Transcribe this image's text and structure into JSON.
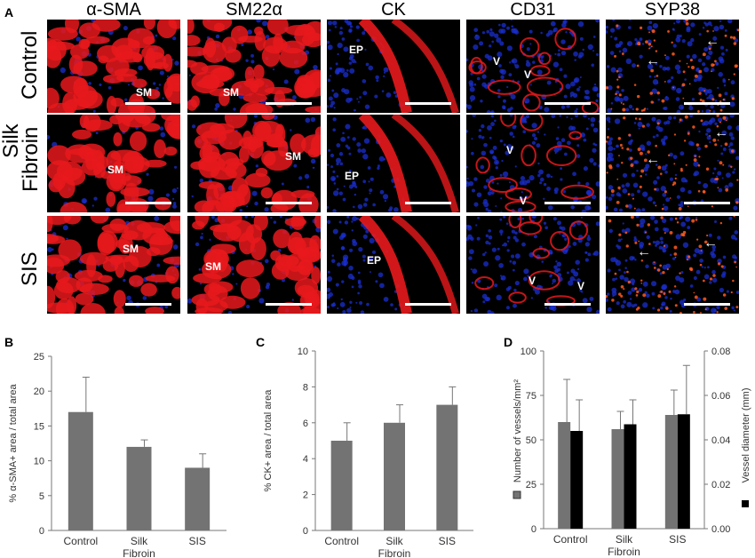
{
  "figure": {
    "panel_letters": [
      "A",
      "B",
      "C",
      "D"
    ],
    "columns": [
      "α-SMA",
      "SM22α",
      "CK",
      "CD31",
      "SYP38"
    ],
    "rows": [
      {
        "label_lines": [
          "Control"
        ]
      },
      {
        "label_lines": [
          "Silk",
          "Fibroin"
        ]
      },
      {
        "label_lines": [
          "SIS"
        ]
      }
    ],
    "annotations": {
      "r0": [
        "SM",
        "SM",
        "EP",
        "V",
        "V"
      ],
      "r1": [
        "SM",
        "SM",
        "EP",
        "V",
        "V"
      ],
      "r2": [
        "SM",
        "SM",
        "EP",
        "V",
        "V"
      ]
    }
  },
  "colors": {
    "tissue_red": "#e8191c",
    "nuclei_blue": "#1a2fd0",
    "background_black": "#000000",
    "bar_gray": "#737373",
    "bar_black": "#000000"
  },
  "chart_data": [
    {
      "type": "bar",
      "panel": "B",
      "categories": [
        [
          "Control"
        ],
        [
          "Silk",
          "Fibroin"
        ],
        [
          "SIS"
        ]
      ],
      "values": [
        17,
        12,
        9
      ],
      "errors": [
        5,
        1,
        2
      ],
      "ylabel": "% α-SMA+ area / total area",
      "ylim": [
        0,
        25
      ],
      "yticks": [
        "0",
        "5",
        "10",
        "15",
        "20",
        "25"
      ]
    },
    {
      "type": "bar",
      "panel": "C",
      "categories": [
        [
          "Control"
        ],
        [
          "Silk",
          "Fibroin"
        ],
        [
          "SIS"
        ]
      ],
      "values": [
        5,
        6,
        7
      ],
      "errors": [
        1,
        1,
        1
      ],
      "ylabel": "% CK+ area / total area",
      "ylim": [
        0,
        10
      ],
      "yticks": [
        "0",
        "2",
        "4",
        "6",
        "8",
        "10"
      ]
    },
    {
      "type": "bar",
      "panel": "D",
      "categories": [
        [
          "Control"
        ],
        [
          "Silk",
          "Fibroin"
        ],
        [
          "SIS"
        ]
      ],
      "series": [
        {
          "name": "Number of vessels/mm²",
          "axis": "left",
          "values": [
            60,
            56,
            64
          ],
          "errors": [
            24,
            10,
            14
          ]
        },
        {
          "name": "Vessel diameter (mm)",
          "axis": "right",
          "values": [
            0.044,
            0.047,
            0.0515
          ],
          "errors": [
            0.014,
            0.011,
            0.022
          ]
        }
      ],
      "ylim": [
        0,
        100
      ],
      "yticks": [
        "0",
        "25",
        "50",
        "75",
        "100"
      ],
      "y2lim": [
        0,
        0.08
      ],
      "y2ticks": [
        "0.00",
        "0.02",
        "0.04",
        "0.06",
        "0.08"
      ]
    }
  ]
}
